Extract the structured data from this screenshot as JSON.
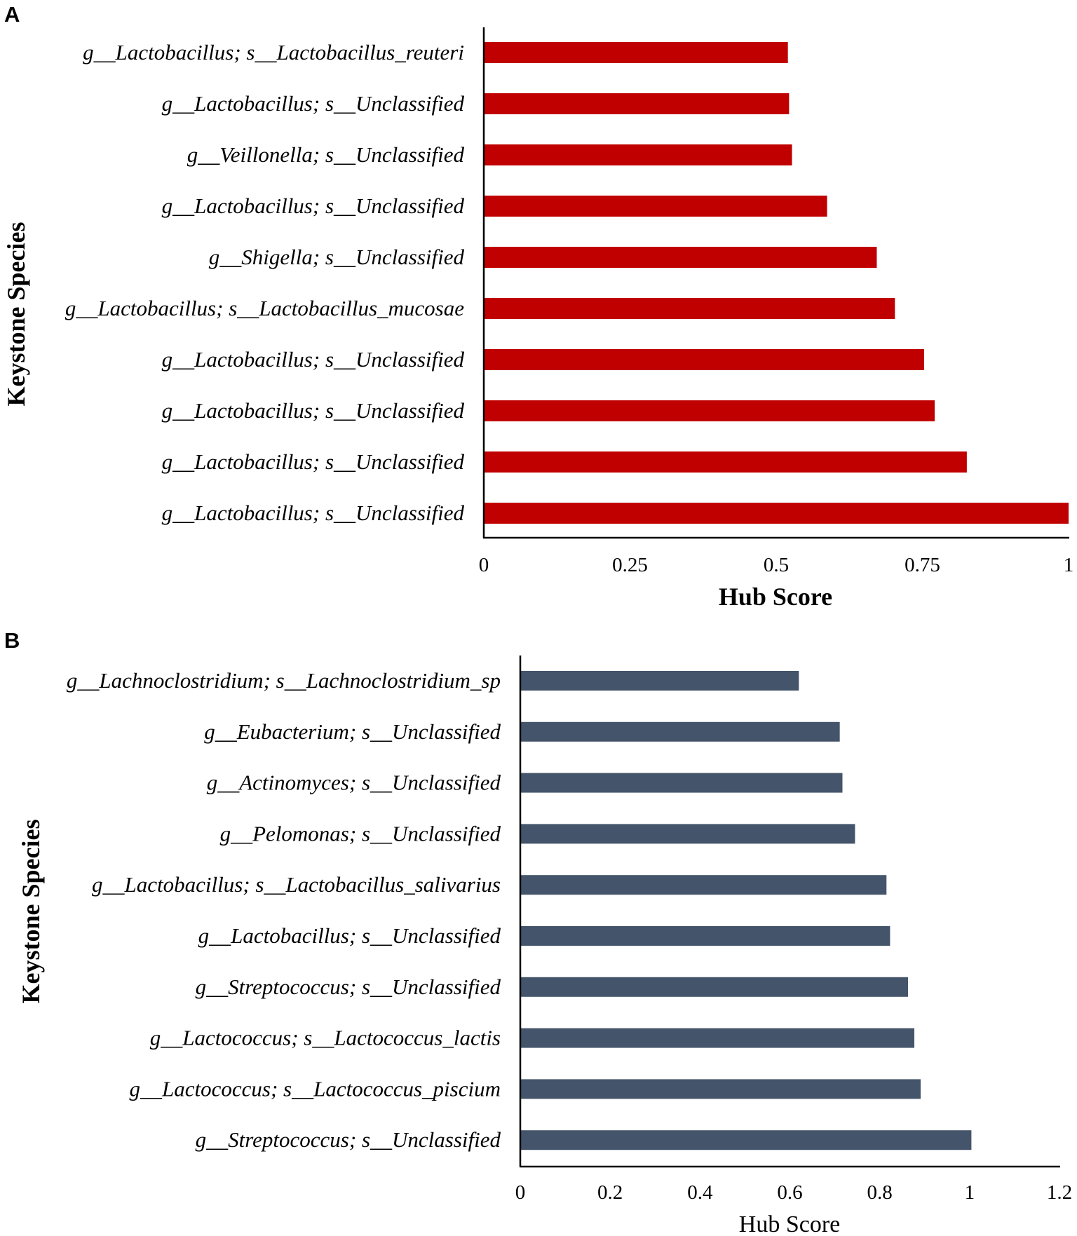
{
  "chart_data": [
    {
      "panel": "A",
      "type": "bar",
      "orientation": "horizontal",
      "categories": [
        "g__Lactobacillus; s__Lactobacillus_reuteri",
        "g__Lactobacillus; s__Unclassified",
        "g__Veillonella; s__Unclassified",
        "g__Lactobacillus; s__Unclassified",
        "g__Shigella; s__Unclassified",
        "g__Lactobacillus; s__Lactobacillus_mucosae",
        "g__Lactobacillus; s__Unclassified",
        "g__Lactobacillus; s__Unclassified",
        "g__Lactobacillus; s__Unclassified",
        "g__Lactobacillus; s__Unclassified"
      ],
      "values": [
        0.52,
        0.522,
        0.527,
        0.587,
        0.672,
        0.703,
        0.753,
        0.771,
        0.826,
        1.0
      ],
      "color": "#c00000",
      "xlabel": "Hub Score",
      "ylabel": "Keystone Species",
      "xlim": [
        0,
        1
      ],
      "xticks": [
        "0",
        "0.25",
        "0.5",
        "0.75",
        "1"
      ],
      "grid": false
    },
    {
      "panel": "B",
      "type": "bar",
      "orientation": "horizontal",
      "categories": [
        "g__Lachnoclostridium; s__Lachnoclostridium_sp",
        "g__Eubacterium; s__Unclassified",
        "g__Actinomyces; s__Unclassified",
        "g__Pelomonas; s__Unclassified",
        "g__Lactobacillus; s__Lactobacillus_salivarius",
        "g__Lactobacillus; s__Unclassified",
        "g__Streptococcus; s__Unclassified",
        "g__Lactococcus; s__Lactococcus_lactis",
        "g__Lactococcus; s__Lactococcus_piscium",
        "g__Streptococcus; s__Unclassified"
      ],
      "values": [
        0.62,
        0.711,
        0.717,
        0.745,
        0.815,
        0.823,
        0.863,
        0.877,
        0.891,
        1.004
      ],
      "color": "#44546a",
      "xlabel": "Hub Score",
      "ylabel": "Keystone Species",
      "xlim": [
        0,
        1.2
      ],
      "xticks": [
        "0",
        "0.2",
        "0.4",
        "0.6",
        "0.8",
        "1",
        "1.2"
      ],
      "grid": false
    }
  ]
}
